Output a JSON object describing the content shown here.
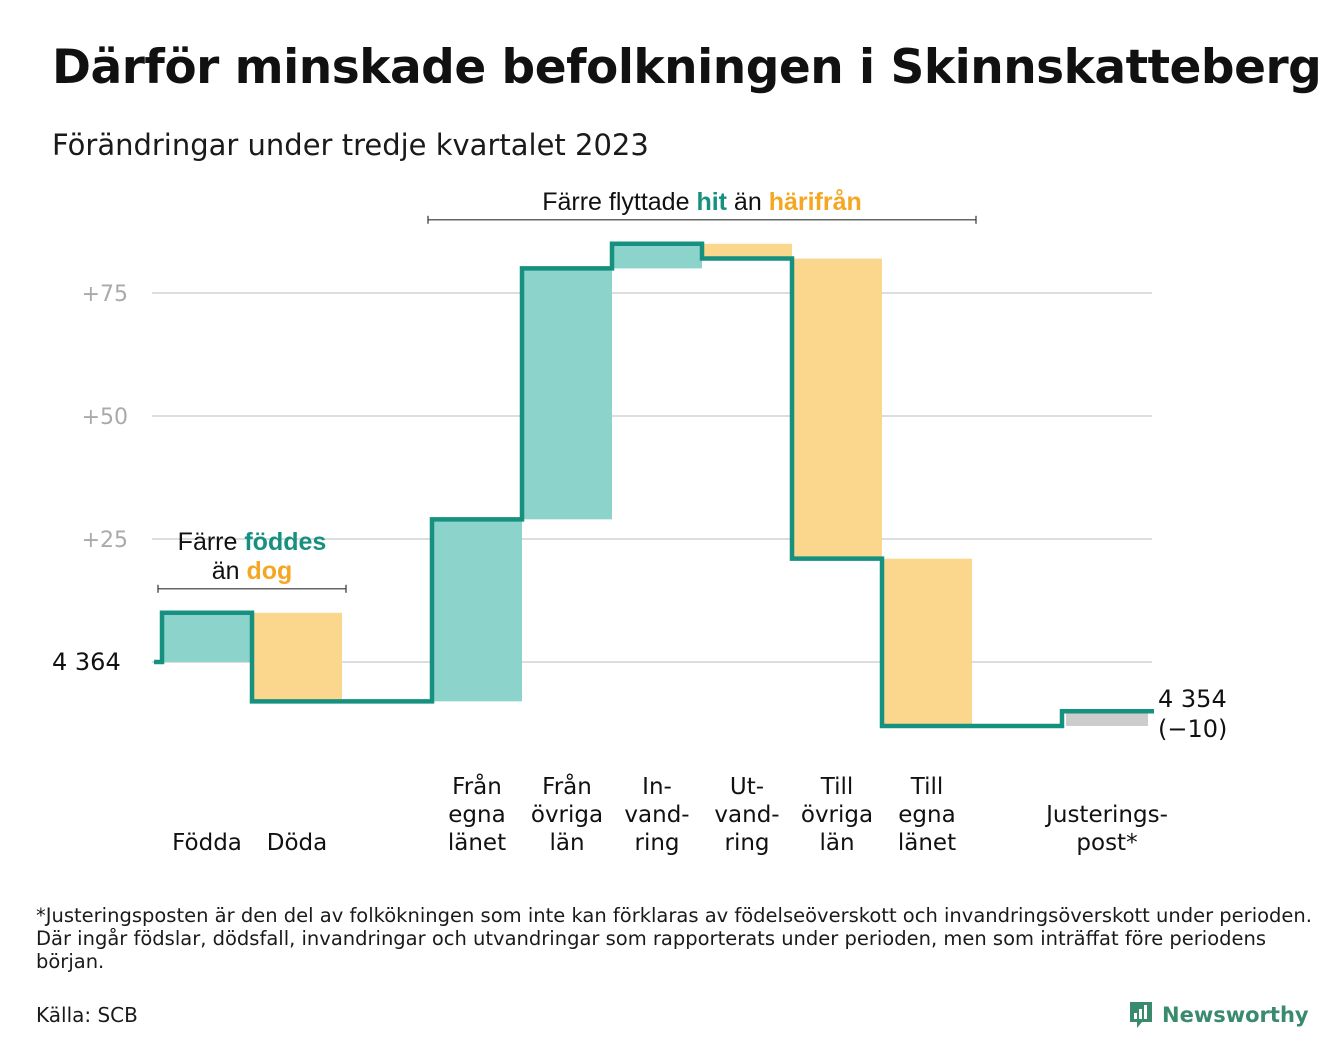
{
  "page": {
    "title": "Därför minskade befolkningen i Skinnskatteberg",
    "subtitle": "Förändringar under tredje kvartalet 2023",
    "footnote": "*Justeringsposten är den del av folkökningen som inte kan förklaras av födelseöverskott och invandringsöverskott under perioden. Där ingår födslar, dödsfall, invandringar och utvandringar som rapporterats under perioden, men som inträffat före periodens början.",
    "source": "Källa: SCB",
    "brand": "Newsworthy",
    "brand_icon": "newsworthy-chart-icon"
  },
  "colors": {
    "positive": "#8cd4cb",
    "negative": "#fbd68d",
    "adjustment": "#cccccc",
    "line": "#17917f",
    "teal_text": "#17917f",
    "orange_text": "#f5a623",
    "grid": "#dddddd",
    "tick_text": "#aaaaaa"
  },
  "chart_data": {
    "type": "waterfall",
    "start_value": 4364,
    "start_label": "4  364",
    "end_value": 4354,
    "end_label": "4 354",
    "end_change_label": "(−10)",
    "y_ticks": [
      {
        "value": 25,
        "label": "+25"
      },
      {
        "value": 50,
        "label": "+50"
      },
      {
        "value": 75,
        "label": "+75"
      }
    ],
    "steps": [
      {
        "label": [
          "",
          "",
          "Födda"
        ],
        "change": 10,
        "kind": "positive"
      },
      {
        "label": [
          "",
          "",
          "Döda"
        ],
        "change": -18,
        "kind": "negative"
      },
      {
        "label": [
          "",
          "",
          ""
        ],
        "change": 0,
        "kind": "gap"
      },
      {
        "label": [
          "Från",
          "egna",
          "länet"
        ],
        "change": 37,
        "kind": "positive"
      },
      {
        "label": [
          "Från",
          "övriga",
          "län"
        ],
        "change": 51,
        "kind": "positive"
      },
      {
        "label": [
          "In-",
          "vand-",
          "ring"
        ],
        "change": 5,
        "kind": "positive"
      },
      {
        "label": [
          "Ut-",
          "vand-",
          "ring"
        ],
        "change": -3,
        "kind": "negative"
      },
      {
        "label": [
          "Till",
          "övriga",
          "län"
        ],
        "change": -61,
        "kind": "negative"
      },
      {
        "label": [
          "Till",
          "egna",
          "länet"
        ],
        "change": -34,
        "kind": "negative"
      },
      {
        "label": [
          "",
          "",
          ""
        ],
        "change": 0,
        "kind": "gap"
      },
      {
        "label": [
          "",
          "Justerings-",
          "post*"
        ],
        "change": 3,
        "kind": "adjustment"
      }
    ],
    "annotations": [
      {
        "id": "births",
        "lines": [
          [
            {
              "text": "Färre ",
              "style": "plain"
            },
            {
              "text": "föddes",
              "style": "teal"
            }
          ],
          [
            {
              "text": "än ",
              "style": "plain"
            },
            {
              "text": "dog",
              "style": "orange"
            }
          ]
        ],
        "from_step": 0,
        "to_step": 1
      },
      {
        "id": "migration",
        "lines": [
          [
            {
              "text": "Färre flyttade ",
              "style": "plain"
            },
            {
              "text": "hit",
              "style": "teal"
            },
            {
              "text": " än ",
              "style": "plain"
            },
            {
              "text": "härifrån",
              "style": "orange"
            }
          ]
        ],
        "from_step": 3,
        "to_step": 8
      }
    ]
  }
}
